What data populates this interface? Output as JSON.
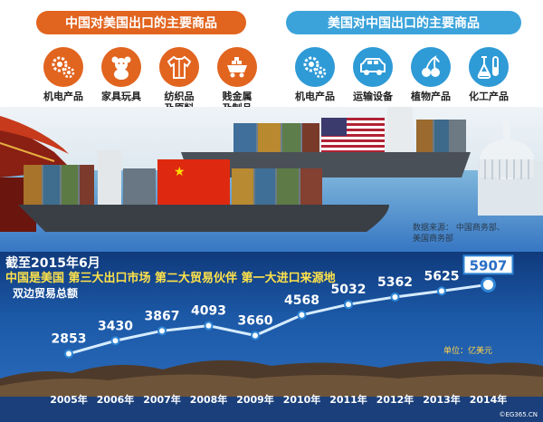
{
  "header": {
    "china_to_us": "中国对美国出口的主要商品",
    "us_to_china": "美国对中国出口的主要商品"
  },
  "china_exports": [
    {
      "label": "机电产品",
      "icon": "gears-icon"
    },
    {
      "label": "家具玩具",
      "icon": "teddy-bear-icon"
    },
    {
      "label": "纺织品\n及原料",
      "icon": "shirt-icon"
    },
    {
      "label": "贱金属\n及制品",
      "icon": "metal-cart-icon"
    }
  ],
  "us_exports": [
    {
      "label": "机电产品",
      "icon": "gears-icon"
    },
    {
      "label": "运输设备",
      "icon": "car-icon"
    },
    {
      "label": "植物产品",
      "icon": "cherries-icon"
    },
    {
      "label": "化工产品",
      "icon": "flask-icon"
    }
  ],
  "source_label": "数据来源：",
  "source_value": "中国商务部、\n美国商务部",
  "panel": {
    "title": "截至2015年6月",
    "subtitle": "中国是美国 第三大出口市场  第二大贸易伙伴  第一大进口来源地",
    "metric": "双边贸易总额",
    "unit": "单位：亿美元"
  },
  "credit": "©EG365.CN",
  "colors": {
    "orange": "#e1641f",
    "blue": "#3ba3da",
    "line": "#d6ecff"
  },
  "chart_data": {
    "type": "line",
    "categories": [
      "2005年",
      "2006年",
      "2007年",
      "2008年",
      "2009年",
      "2010年",
      "2011年",
      "2012年",
      "2013年",
      "2014年"
    ],
    "values": [
      2853,
      3430,
      3867,
      4093,
      3660,
      4568,
      5032,
      5362,
      5625,
      5907
    ],
    "highlight_last": true,
    "ylim": [
      2400,
      6000
    ],
    "grid": false
  }
}
